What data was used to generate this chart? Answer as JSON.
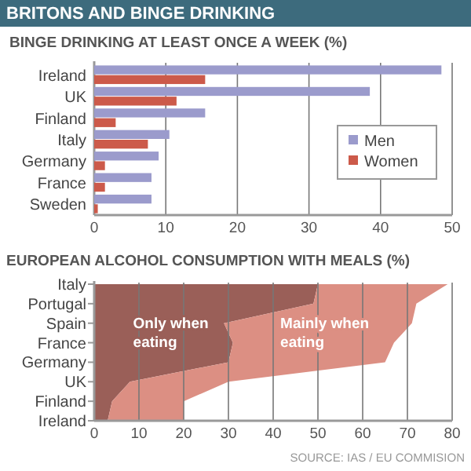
{
  "chart_data": [
    {
      "type": "bar",
      "orientation": "horizontal",
      "title": "BRITONS AND BINGE DRINKING",
      "subtitle": "BINGE DRINKING AT LEAST ONCE A WEEK (%)",
      "categories": [
        "Ireland",
        "UK",
        "Finland",
        "Italy",
        "Germany",
        "France",
        "Sweden"
      ],
      "series": [
        {
          "name": "Men",
          "color": "#9b9bcc",
          "values": [
            48.5,
            38.5,
            15.5,
            10.5,
            9,
            8,
            8
          ]
        },
        {
          "name": "Women",
          "color": "#cc5a4a",
          "values": [
            15.5,
            11.5,
            3,
            7.5,
            1.5,
            1.5,
            0.5
          ]
        }
      ],
      "xlim": [
        0,
        50
      ],
      "xticks": [
        0,
        10,
        20,
        30,
        40,
        50
      ],
      "grid": "x",
      "legend": "right"
    },
    {
      "type": "area",
      "orientation": "horizontal",
      "stacked": true,
      "title": "EUROPEAN ALCOHOL CONSUMPTION WITH MEALS (%)",
      "categories": [
        "Italy",
        "Portugal",
        "Spain",
        "France",
        "Germany",
        "UK",
        "Finland",
        "Ireland"
      ],
      "series": [
        {
          "name": "Only when eating",
          "color": "#9a5f58",
          "values": [
            50,
            49,
            29,
            31,
            30,
            8,
            4,
            3
          ]
        },
        {
          "name": "Mainly when eating",
          "color": "#dc8f83",
          "values": [
            29,
            23,
            42,
            36,
            35,
            22,
            16,
            17
          ]
        }
      ],
      "xlim": [
        0,
        80
      ],
      "xticks": [
        0,
        10,
        20,
        30,
        40,
        50,
        60,
        70,
        80
      ],
      "grid": "x",
      "annotations": [
        "SOURCE: IAS / EU COMMISION"
      ]
    }
  ]
}
